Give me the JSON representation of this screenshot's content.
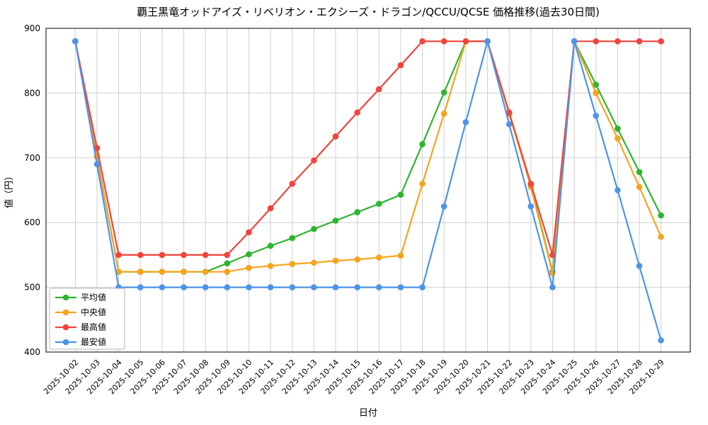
{
  "chart_data": {
    "type": "line",
    "title": "覇王黒竜オッドアイズ・リベリオン・エクシーズ・ドラゴン/QCCU/QCSE 価格推移(過去30日間)",
    "xlabel": "日付",
    "ylabel": "値（円）",
    "ylim": [
      400,
      900
    ],
    "yticks": [
      400,
      500,
      600,
      700,
      800,
      900
    ],
    "grid": true,
    "legend_position": "lower-left",
    "x": [
      "2025-10-02",
      "2025-10-03",
      "2025-10-04",
      "2025-10-05",
      "2025-10-06",
      "2025-10-07",
      "2025-10-08",
      "2025-10-09",
      "2025-10-10",
      "2025-10-11",
      "2025-10-12",
      "2025-10-13",
      "2025-10-14",
      "2025-10-15",
      "2025-10-16",
      "2025-10-17",
      "2025-10-18",
      "2025-10-19",
      "2025-10-20",
      "2025-10-21",
      "2025-10-22",
      "2025-10-23",
      "2025-10-24",
      "2025-10-25",
      "2025-10-26",
      "2025-10-27",
      "2025-10-28",
      "2025-10-29"
    ],
    "series": [
      {
        "key": "average",
        "name": "平均値",
        "color": "#2eb430",
        "values": [
          880,
          702,
          524,
          524,
          524,
          524,
          524,
          537,
          551,
          564,
          576,
          590,
          603,
          616,
          629,
          643,
          721,
          801,
          880,
          880,
          768,
          658,
          524,
          880,
          813,
          745,
          678,
          611
        ]
      },
      {
        "key": "median",
        "name": "中央値",
        "color": "#f5a41e",
        "values": [
          880,
          702,
          524,
          524,
          524,
          524,
          524,
          524,
          530,
          533,
          536,
          538,
          541,
          543,
          546,
          549,
          660,
          768,
          880,
          880,
          768,
          655,
          522,
          880,
          800,
          730,
          655,
          578
        ]
      },
      {
        "key": "max",
        "name": "最高値",
        "color": "#f2443c",
        "values": [
          880,
          715,
          550,
          550,
          550,
          550,
          550,
          550,
          585,
          622,
          660,
          696,
          733,
          770,
          806,
          843,
          880,
          880,
          880,
          880,
          770,
          660,
          550,
          880,
          880,
          880,
          880,
          880
        ]
      },
      {
        "key": "min",
        "name": "最安値",
        "color": "#4d94e8",
        "values": [
          880,
          690,
          500,
          500,
          500,
          500,
          500,
          500,
          500,
          500,
          500,
          500,
          500,
          500,
          500,
          500,
          500,
          625,
          755,
          880,
          752,
          625,
          500,
          880,
          765,
          650,
          533,
          418
        ]
      }
    ]
  }
}
